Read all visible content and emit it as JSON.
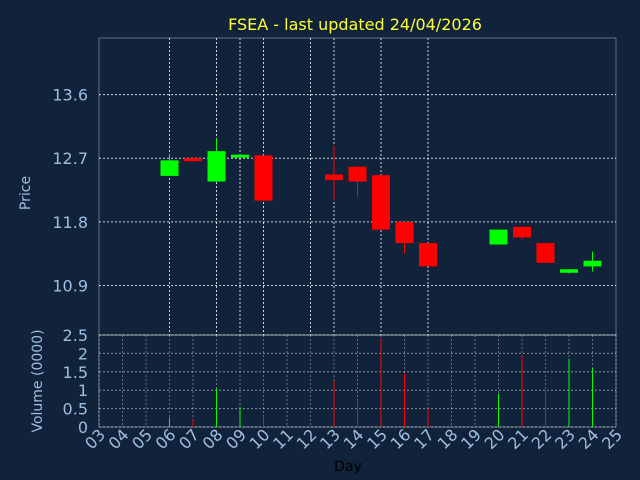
{
  "chart_data": [
    {
      "type": "candlestick",
      "title": "FSEA - last updated 24/04/2026",
      "ylabel": "Price",
      "xlabel": "",
      "ylim": [
        10.2,
        14.4
      ],
      "yticks": [
        "13.6",
        "12.7",
        "11.8",
        "10.9"
      ],
      "ytick_values": [
        13.6,
        12.7,
        11.8,
        10.9
      ],
      "xlim": [
        3,
        25
      ],
      "xgrid": [
        6,
        8,
        9,
        10,
        12,
        13,
        15,
        17
      ],
      "grid": true,
      "colors": {
        "up": "#00ff00",
        "down": "#ff0000",
        "grid": "#ffffff",
        "background": "#10233a",
        "text": "#9ebfe0",
        "title": "#ffff33"
      },
      "candles": [
        {
          "day": 6,
          "open": 12.45,
          "high": 12.75,
          "low": 12.45,
          "close": 12.67
        },
        {
          "day": 7,
          "open": 12.7,
          "high": 12.72,
          "low": 12.66,
          "close": 12.66
        },
        {
          "day": 8,
          "open": 12.37,
          "high": 12.98,
          "low": 12.37,
          "close": 12.8
        },
        {
          "day": 9,
          "open": 12.71,
          "high": 12.75,
          "low": 12.71,
          "close": 12.75
        },
        {
          "day": 10,
          "open": 12.74,
          "high": 12.74,
          "low": 12.1,
          "close": 12.1
        },
        {
          "day": 13,
          "open": 12.47,
          "high": 12.88,
          "low": 12.1,
          "close": 12.39
        },
        {
          "day": 14,
          "open": 12.58,
          "high": 12.58,
          "low": 12.15,
          "close": 12.37
        },
        {
          "day": 15,
          "open": 12.46,
          "high": 12.46,
          "low": 11.69,
          "close": 11.69
        },
        {
          "day": 16,
          "open": 11.8,
          "high": 11.8,
          "low": 11.35,
          "close": 11.5
        },
        {
          "day": 17,
          "open": 11.5,
          "high": 11.5,
          "low": 11.17,
          "close": 11.17
        },
        {
          "day": 20,
          "open": 11.48,
          "high": 11.69,
          "low": 11.48,
          "close": 11.69
        },
        {
          "day": 21,
          "open": 11.73,
          "high": 11.73,
          "low": 11.55,
          "close": 11.58
        },
        {
          "day": 22,
          "open": 11.5,
          "high": 11.5,
          "low": 11.22,
          "close": 11.22
        },
        {
          "day": 23,
          "open": 11.08,
          "high": 11.13,
          "low": 11.07,
          "close": 11.13
        },
        {
          "day": 24,
          "open": 11.17,
          "high": 11.38,
          "low": 11.1,
          "close": 11.25
        }
      ]
    },
    {
      "type": "bar",
      "ylabel": "Volume (0000)",
      "xlabel": "Day",
      "ylim": [
        0,
        2.5
      ],
      "yticks": [
        "2.5",
        "2",
        "1.5",
        "1",
        "0.5",
        "0"
      ],
      "ytick_values": [
        2.5,
        2,
        1.5,
        1,
        0.5,
        0
      ],
      "xlim": [
        3,
        25
      ],
      "xticks": [
        "03",
        "04",
        "05",
        "06",
        "07",
        "08",
        "09",
        "10",
        "11",
        "12",
        "13",
        "14",
        "15",
        "16",
        "17",
        "18",
        "19",
        "20",
        "21",
        "22",
        "23",
        "24",
        "25"
      ],
      "xtick_values": [
        3,
        4,
        5,
        6,
        7,
        8,
        9,
        10,
        11,
        12,
        13,
        14,
        15,
        16,
        17,
        18,
        19,
        20,
        21,
        22,
        23,
        24,
        25
      ],
      "bars": [
        {
          "day": 6,
          "value": 0.25,
          "color": "up"
        },
        {
          "day": 7,
          "value": 0.22,
          "color": "down"
        },
        {
          "day": 8,
          "value": 1.05,
          "color": "up"
        },
        {
          "day": 9,
          "value": 0.55,
          "color": "up"
        },
        {
          "day": 10,
          "value": 0.25,
          "color": "down"
        },
        {
          "day": 13,
          "value": 1.25,
          "color": "down"
        },
        {
          "day": 14,
          "value": 0.7,
          "color": "down"
        },
        {
          "day": 15,
          "value": 2.4,
          "color": "down"
        },
        {
          "day": 16,
          "value": 1.45,
          "color": "down"
        },
        {
          "day": 17,
          "value": 0.5,
          "color": "down"
        },
        {
          "day": 20,
          "value": 0.9,
          "color": "up"
        },
        {
          "day": 21,
          "value": 1.95,
          "color": "down"
        },
        {
          "day": 22,
          "value": 1.0,
          "color": "down"
        },
        {
          "day": 23,
          "value": 1.85,
          "color": "up"
        },
        {
          "day": 24,
          "value": 1.6,
          "color": "up"
        }
      ]
    }
  ]
}
